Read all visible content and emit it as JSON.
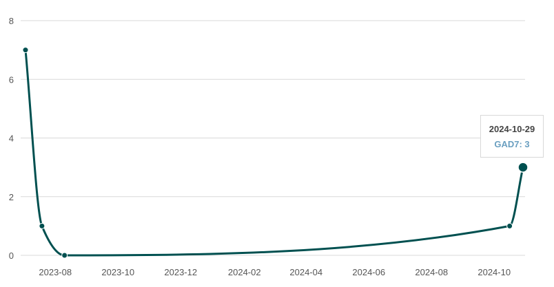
{
  "colors": {
    "line": "#005050",
    "grid": "#d9d9d9",
    "tooltip_value": "#6a9fc0"
  },
  "chart_data": {
    "type": "line",
    "x": [
      "2023-07-03",
      "2023-07-19",
      "2023-08-10",
      "2024-10-16",
      "2024-10-29"
    ],
    "series": [
      {
        "name": "GAD7",
        "values": [
          7,
          1,
          0,
          1,
          3
        ]
      }
    ],
    "ylim": [
      0,
      8
    ],
    "yticks": [
      "0",
      "2",
      "4",
      "6",
      "8"
    ],
    "xticks": [
      "2023-08",
      "2023-10",
      "2023-12",
      "2024-02",
      "2024-04",
      "2024-06",
      "2024-08",
      "2024-10"
    ],
    "grid": true,
    "highlighted_point": 4
  },
  "tooltip": {
    "date": "2024-10-29",
    "label": "GAD7: 3"
  }
}
